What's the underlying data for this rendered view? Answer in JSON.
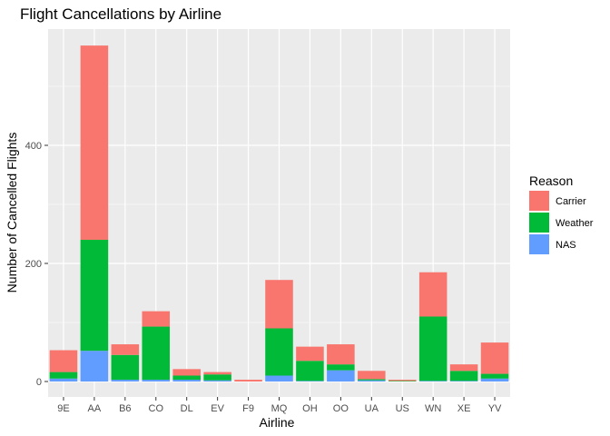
{
  "chart_data": {
    "type": "bar",
    "stacked": true,
    "title": "Flight Cancellations by Airline",
    "xlabel": "Airline",
    "ylabel": "Number of Cancelled Flights",
    "categories": [
      "9E",
      "AA",
      "B6",
      "CO",
      "DL",
      "EV",
      "F9",
      "MQ",
      "OH",
      "OO",
      "UA",
      "US",
      "WN",
      "XE",
      "YV"
    ],
    "series": [
      {
        "name": "NAS",
        "color": "#619CFF",
        "values": [
          5,
          52,
          3,
          3,
          3,
          2,
          0,
          10,
          1,
          19,
          2,
          0,
          1,
          1,
          5
        ]
      },
      {
        "name": "Weather",
        "color": "#00BA38",
        "values": [
          11,
          188,
          42,
          90,
          7,
          10,
          0,
          80,
          34,
          10,
          2,
          1,
          109,
          17,
          8
        ]
      },
      {
        "name": "Carrier",
        "color": "#F8766D",
        "values": [
          37,
          329,
          18,
          26,
          11,
          4,
          3,
          82,
          24,
          34,
          14,
          2,
          75,
          11,
          53
        ]
      }
    ],
    "ylim": [
      0,
      590
    ],
    "yticks": [
      0,
      200,
      400
    ],
    "grid": true,
    "legend": {
      "title": "Reason",
      "position": "right",
      "items": [
        {
          "label": "Carrier",
          "color": "#F8766D"
        },
        {
          "label": "Weather",
          "color": "#00BA38"
        },
        {
          "label": "NAS",
          "color": "#619CFF"
        }
      ]
    },
    "panel_color": "#EBEBEB",
    "grid_color": "#FFFFFF"
  }
}
